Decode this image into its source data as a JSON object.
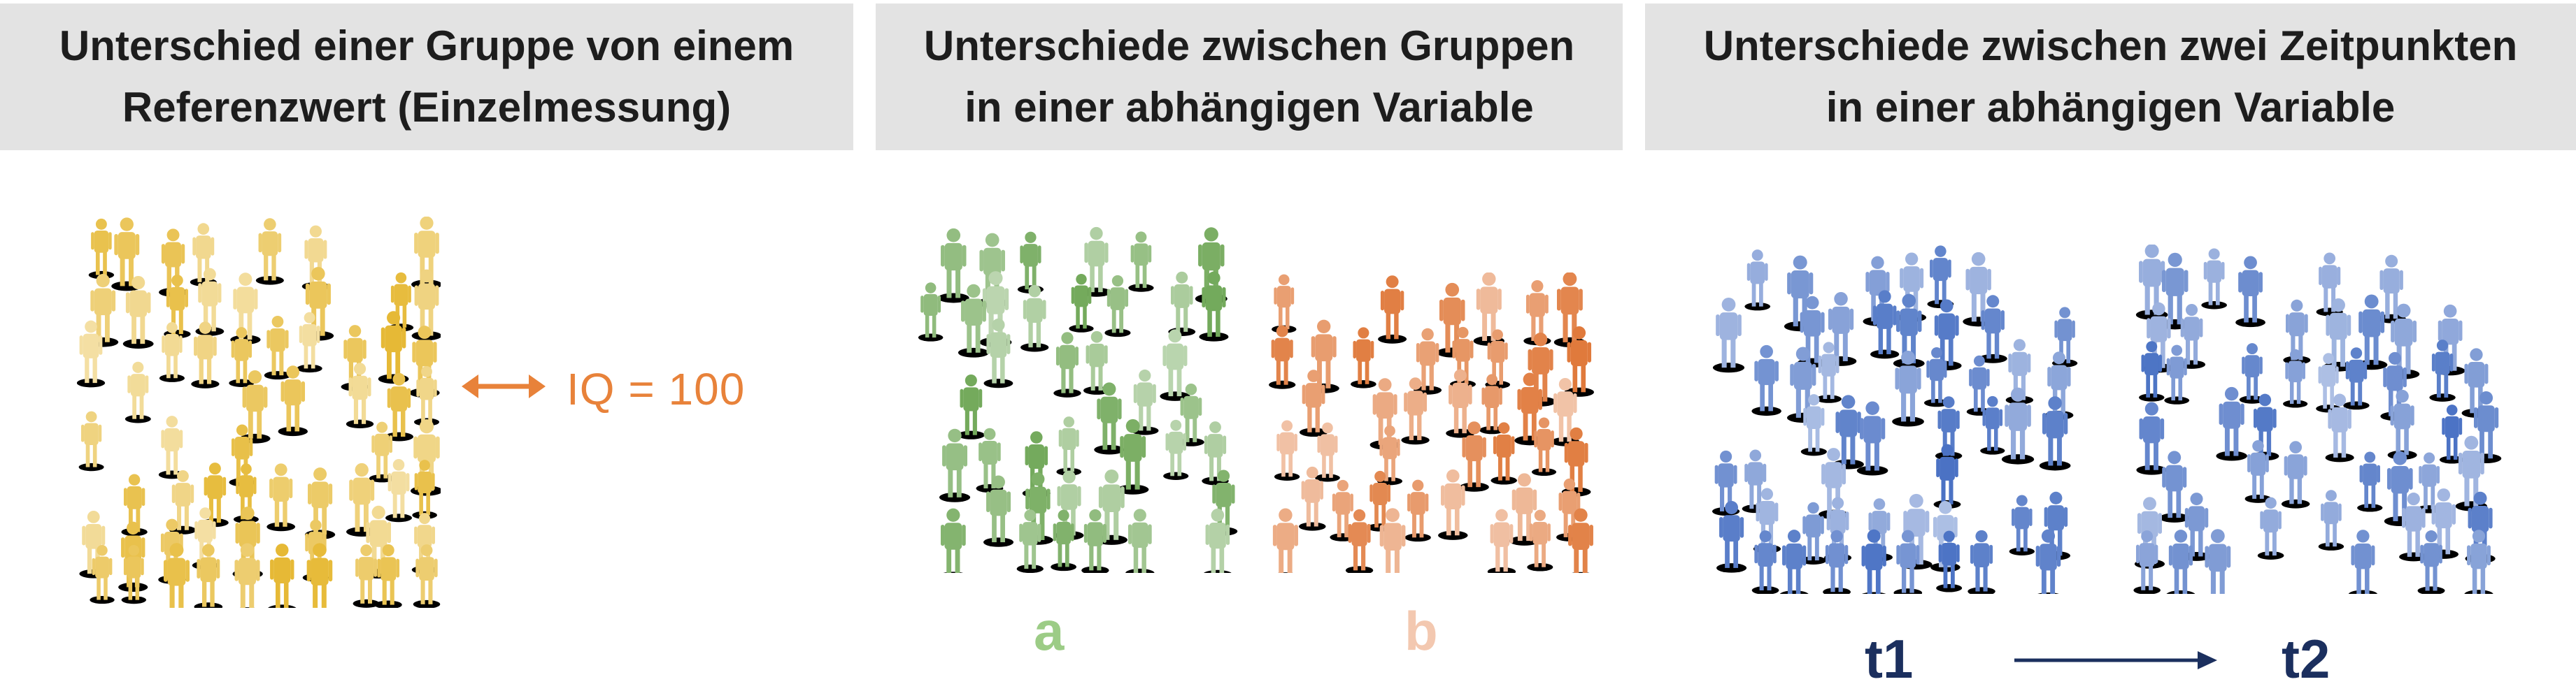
{
  "panels": [
    {
      "title_line1": "Unterschied einer Gruppe von einem",
      "title_line2": "Referenzwert (Einzelmessung)",
      "crowd_color": "#e6b935",
      "reference_label": "IQ = 100",
      "reference_color": "#e8823a",
      "arrow": "double-headed"
    },
    {
      "title_line1": "Unterschiede zwischen Gruppen",
      "title_line2": "in einer abhängigen Variable",
      "groups": [
        {
          "label": "a",
          "crowd_color": "#72a95a",
          "label_color": "#9ccc86"
        },
        {
          "label": "b",
          "crowd_color": "#e07a3c",
          "label_color": "#f3c8b0"
        }
      ]
    },
    {
      "title_line1": "Unterschiede zwischen zwei Zeitpunkten",
      "title_line2": "in einer abhängigen Variable",
      "timepoints": [
        {
          "label": "t1",
          "crowd_color": "#4a72c4"
        },
        {
          "label": "t2",
          "crowd_color": "#4a72c4"
        }
      ],
      "label_color": "#1b2f5e",
      "arrow": "single-headed right"
    }
  ]
}
